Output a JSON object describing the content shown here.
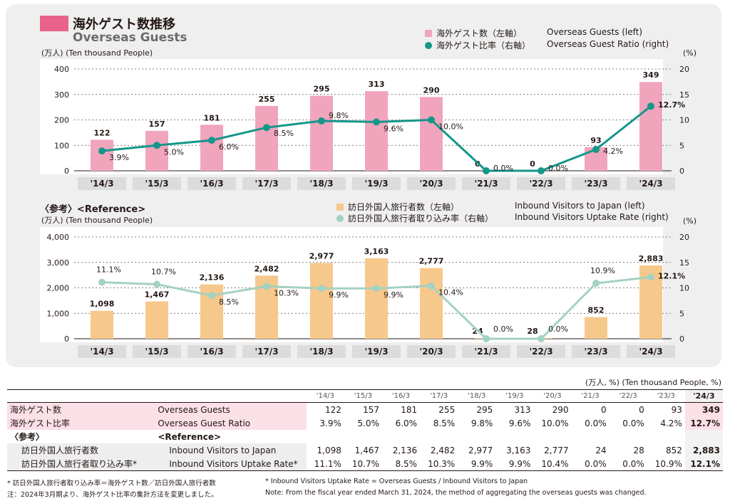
{
  "header": {
    "title_jp": "海外ゲスト数推移",
    "title_en": "Overseas Guests",
    "unit_top": "(万人) (Ten thousand People)",
    "unit_right": "(%)"
  },
  "legend1": {
    "bar_jp": "海外ゲスト数（左軸）",
    "bar_en": "Overseas Guests (left)",
    "line_jp": "海外ゲスト比率（右軸）",
    "line_en": "Overseas Guest Ratio (right)"
  },
  "reference": {
    "label": "〈参考〉<Reference>",
    "unit": "(万人) (Ten thousand People)",
    "unit_right": "(%)"
  },
  "legend2": {
    "bar_jp": "訪日外国人旅行者数（左軸）",
    "bar_en": "Inbound Visitors to Japan (left)",
    "line_jp": "訪日外国人旅行者取り込み率（右軸）",
    "line_en": "Inbound Visitors Uptake Rate (right)"
  },
  "colors": {
    "bar1": "#f0a5bd",
    "line1": "#15968a",
    "bar2": "#f7c88c",
    "line2": "#a3d1c2"
  },
  "chart_data": [
    {
      "type": "bar",
      "title": "Overseas Guests",
      "categories": [
        "'14/3",
        "'15/3",
        "'16/3",
        "'17/3",
        "'18/3",
        "'19/3",
        "'20/3",
        "'21/3",
        "'22/3",
        "'23/3",
        "'24/3"
      ],
      "series": [
        {
          "name": "海外ゲスト数（左軸）",
          "axis": "left",
          "type": "bar",
          "values": [
            122,
            157,
            181,
            255,
            295,
            313,
            290,
            0,
            0,
            93,
            349
          ]
        },
        {
          "name": "海外ゲスト比率（右軸）",
          "axis": "right",
          "type": "line",
          "values": [
            3.9,
            5.0,
            6.0,
            8.5,
            9.8,
            9.6,
            10.0,
            0.0,
            0.0,
            4.2,
            12.7
          ]
        }
      ],
      "bar_labels": [
        "122",
        "157",
        "181",
        "255",
        "295",
        "313",
        "290",
        "0",
        "0",
        "93",
        "349"
      ],
      "line_labels": [
        "3.9%",
        "5.0%",
        "6.0%",
        "8.5%",
        "9.8%",
        "9.6%",
        "10.0%",
        "0.0%",
        "0.0%",
        "4.2%",
        "12.7%"
      ],
      "ylim_left": [
        0,
        400
      ],
      "yticks_left": [
        "0",
        "100",
        "200",
        "300",
        "400"
      ],
      "ylim_right": [
        0,
        20
      ],
      "yticks_right": [
        "0",
        "5",
        "10",
        "15",
        "20"
      ],
      "ylabel_left": "(万人) (Ten thousand People)",
      "ylabel_right": "(%)"
    },
    {
      "type": "bar",
      "title": "Reference",
      "categories": [
        "'14/3",
        "'15/3",
        "'16/3",
        "'17/3",
        "'18/3",
        "'19/3",
        "'20/3",
        "'21/3",
        "'22/3",
        "'23/3",
        "'24/3"
      ],
      "series": [
        {
          "name": "訪日外国人旅行者数（左軸）",
          "axis": "left",
          "type": "bar",
          "values": [
            1098,
            1467,
            2136,
            2482,
            2977,
            3163,
            2777,
            24,
            28,
            852,
            2883
          ]
        },
        {
          "name": "訪日外国人旅行者取り込み率（右軸）",
          "axis": "right",
          "type": "line",
          "values": [
            11.1,
            10.7,
            8.5,
            10.3,
            9.9,
            9.9,
            10.4,
            0.0,
            0.0,
            10.9,
            12.1
          ]
        }
      ],
      "bar_labels": [
        "1,098",
        "1,467",
        "2,136",
        "2,482",
        "2,977",
        "3,163",
        "2,777",
        "24",
        "28",
        "852",
        "2,883"
      ],
      "line_labels": [
        "11.1%",
        "10.7%",
        "8.5%",
        "10.3%",
        "9.9%",
        "9.9%",
        "10.4%",
        "0.0%",
        "0.0%",
        "10.9%",
        "12.1%"
      ],
      "ylim_left": [
        0,
        4000
      ],
      "yticks_left": [
        "0",
        "1,000",
        "2,000",
        "3,000",
        "4,000"
      ],
      "ylim_right": [
        0,
        20
      ],
      "yticks_right": [
        "0",
        "5",
        "10",
        "15",
        "20"
      ],
      "ylabel_left": "(万人) (Ten thousand People)",
      "ylabel_right": "(%)"
    }
  ],
  "table": {
    "unit": "(万人, %) (Ten thousand People, %)",
    "years": [
      "'14/3",
      "'15/3",
      "'16/3",
      "'17/3",
      "'18/3",
      "'19/3",
      "'20/3",
      "'21/3",
      "'22/3",
      "'23/3",
      "'24/3"
    ],
    "rows": [
      {
        "jp": "海外ゲスト数",
        "en": "Overseas Guests",
        "cells": [
          "122",
          "157",
          "181",
          "255",
          "295",
          "313",
          "290",
          "0",
          "0",
          "93",
          "349"
        ],
        "style": "pink"
      },
      {
        "jp": "海外ゲスト比率",
        "en": "Overseas Guest Ratio",
        "cells": [
          "3.9%",
          "5.0%",
          "6.0%",
          "8.5%",
          "9.8%",
          "9.6%",
          "10.0%",
          "0.0%",
          "0.0%",
          "4.2%",
          "12.7%"
        ],
        "style": "pink"
      },
      {
        "jp": "〈参考〉",
        "en": "<Reference>",
        "cells": [
          "",
          "",
          "",
          "",
          "",
          "",
          "",
          "",
          "",
          "",
          ""
        ],
        "style": "ref"
      },
      {
        "jp": "訪日外国人旅行者数",
        "en": "Inbound Visitors to Japan",
        "cells": [
          "1,098",
          "1,467",
          "2,136",
          "2,482",
          "2,977",
          "3,163",
          "2,777",
          "24",
          "28",
          "852",
          "2,883"
        ],
        "style": "gray"
      },
      {
        "jp": "訪日外国人旅行者取り込み率*",
        "en": "Inbound Visitors Uptake Rate*",
        "cells": [
          "11.1%",
          "10.7%",
          "8.5%",
          "10.3%",
          "9.9%",
          "9.9%",
          "10.4%",
          "0.0%",
          "0.0%",
          "10.9%",
          "12.1%"
        ],
        "style": "gray"
      }
    ]
  },
  "notes": {
    "jp1": "* 訪日外国人旅行者取り込み率＝海外ゲスト数／訪日外国人旅行者数",
    "jp2": "注：2024年3月期より、海外ゲスト比率の集計方法を変更しました。",
    "en1": "* Inbound Visitors Uptake Rate = Overseas Guests / Inbound Visitors to Japan",
    "en2": "Note: From the fiscal year ended March 31, 2024, the method of aggregating the overseas guests was changed."
  }
}
